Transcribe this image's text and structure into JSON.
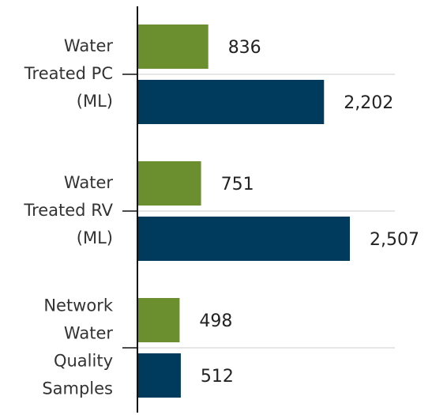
{
  "chart_data": {
    "type": "hbar",
    "categories": [
      "Water Treated PC (ML)",
      "Water Treated RV (ML)",
      "Network Water Quality Samples"
    ],
    "series": [
      {
        "color": "#6b8f2f",
        "values": [
          836,
          751,
          498
        ]
      },
      {
        "color": "#003a5c",
        "values": [
          2202,
          2507,
          512
        ],
        "value_labels": [
          "2,202",
          "2,507",
          "512"
        ]
      }
    ],
    "grid": true
  }
}
